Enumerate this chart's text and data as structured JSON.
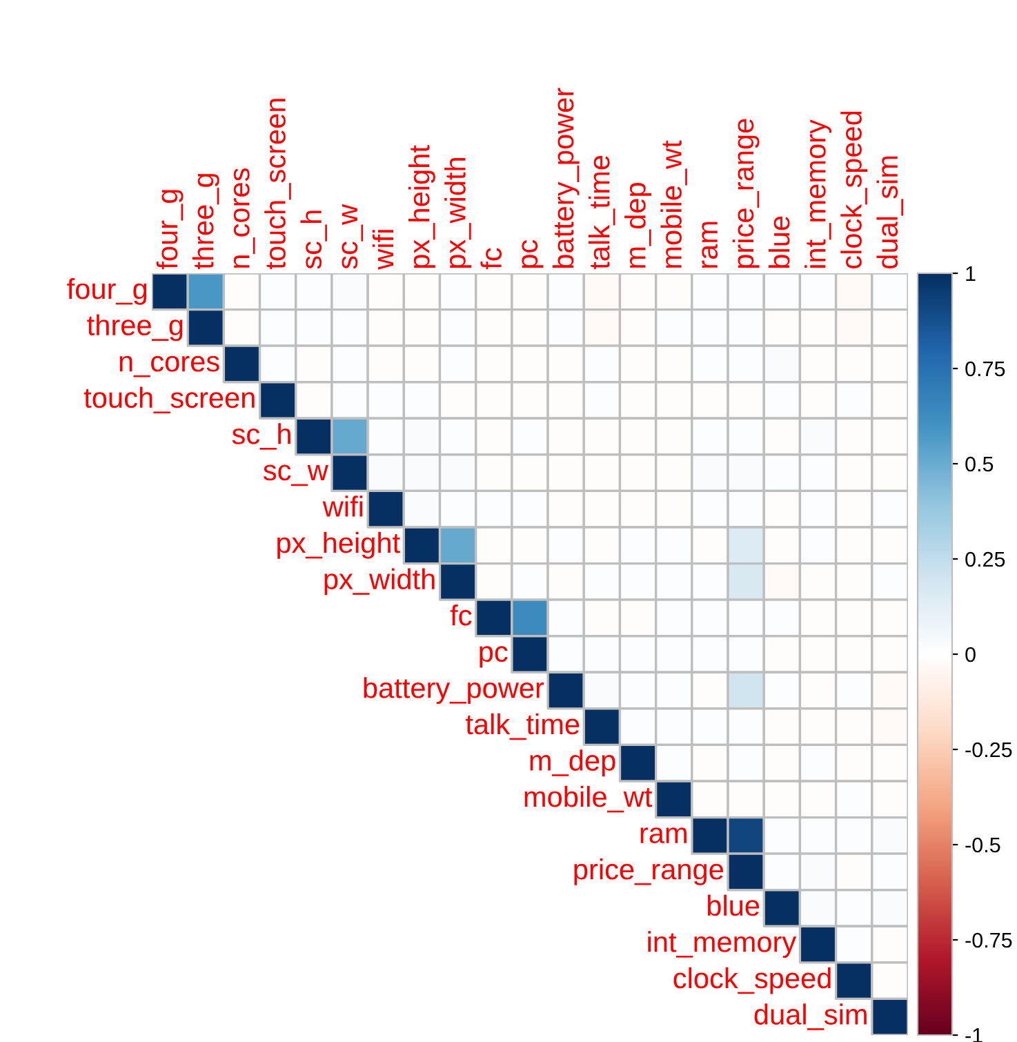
{
  "chart_data": {
    "type": "heatmap",
    "categories": [
      "four_g",
      "three_g",
      "n_cores",
      "touch_screen",
      "sc_h",
      "sc_w",
      "wifi",
      "px_height",
      "px_width",
      "fc",
      "pc",
      "battery_power",
      "talk_time",
      "m_dep",
      "mobile_wt",
      "ram",
      "price_range",
      "blue",
      "int_memory",
      "clock_speed",
      "dual_sim"
    ],
    "y_categories": [
      "four_g",
      "three_g",
      "n_cores",
      "touch_screen",
      "sc_h",
      "sc_w",
      "wifi",
      "px_height",
      "px_width",
      "fc",
      "pc",
      "battery_power",
      "talk_time",
      "m_dep",
      "mobile_wt",
      "ram",
      "price_range",
      "blue",
      "int_memory",
      "clock_speed",
      "dual_sim"
    ],
    "cells": [
      [
        1,
        0.58,
        -0.01,
        0.01,
        0.01,
        0.03,
        -0.01,
        -0.01,
        0.01,
        -0.01,
        -0.01,
        0.01,
        -0.03,
        -0.01,
        -0.01,
        0.01,
        0.01,
        0.01,
        0.01,
        -0.03,
        0.01
      ],
      [
        null,
        1,
        -0.01,
        0.01,
        0.01,
        0.01,
        -0.01,
        -0.01,
        0.01,
        -0.01,
        -0.01,
        0.01,
        -0.03,
        -0.01,
        0.01,
        0.01,
        0.01,
        -0.01,
        -0.01,
        -0.03,
        -0.01
      ],
      [
        null,
        null,
        1,
        0.01,
        -0.01,
        0.01,
        -0.01,
        -0.01,
        0.01,
        -0.01,
        -0.01,
        -0.01,
        0.01,
        -0.01,
        -0.01,
        0.01,
        0.01,
        0.03,
        -0.01,
        -0.01,
        -0.01
      ],
      [
        null,
        null,
        null,
        1,
        -0.01,
        0.01,
        0.01,
        0.01,
        -0.01,
        -0.01,
        -0.01,
        -0.01,
        0.01,
        -0.01,
        -0.01,
        -0.01,
        -0.01,
        0.01,
        -0.01,
        0.01,
        -0.01
      ],
      [
        null,
        null,
        null,
        null,
        1,
        0.51,
        0.01,
        0.03,
        0.01,
        -0.01,
        0.01,
        -0.01,
        -0.01,
        -0.01,
        -0.01,
        0.01,
        0.01,
        -0.01,
        0.03,
        -0.01,
        -0.01
      ],
      [
        null,
        null,
        null,
        null,
        null,
        1,
        0.03,
        0.03,
        0.03,
        -0.01,
        -0.01,
        -0.01,
        -0.01,
        -0.01,
        -0.01,
        0.03,
        0.03,
        0.01,
        0.01,
        -0.01,
        -0.01
      ],
      [
        null,
        null,
        null,
        null,
        null,
        null,
        1,
        0.03,
        0.01,
        0.01,
        0.01,
        -0.01,
        -0.01,
        -0.01,
        -0.01,
        0.01,
        0.01,
        -0.01,
        0.01,
        -0.01,
        0.01
      ],
      [
        null,
        null,
        null,
        null,
        null,
        null,
        null,
        1,
        0.51,
        -0.01,
        -0.01,
        0.01,
        -0.01,
        0.01,
        0.01,
        -0.01,
        0.15,
        -0.01,
        0.01,
        -0.01,
        -0.01
      ],
      [
        null,
        null,
        null,
        null,
        null,
        null,
        null,
        null,
        1,
        -0.01,
        0.01,
        -0.01,
        0.01,
        0.01,
        0.01,
        0.01,
        0.17,
        -0.03,
        -0.01,
        -0.01,
        0.01
      ],
      [
        null,
        null,
        null,
        null,
        null,
        null,
        null,
        null,
        null,
        1,
        0.64,
        0.01,
        -0.01,
        -0.01,
        0.01,
        0.01,
        0.01,
        0.01,
        -0.01,
        -0.01,
        -0.01
      ],
      [
        null,
        null,
        null,
        null,
        null,
        null,
        null,
        null,
        null,
        null,
        1,
        0.01,
        0.01,
        0.01,
        0.01,
        0.01,
        0.01,
        -0.01,
        -0.01,
        -0.01,
        -0.01
      ],
      [
        null,
        null,
        null,
        null,
        null,
        null,
        null,
        null,
        null,
        null,
        null,
        1,
        0.03,
        0.01,
        0.01,
        -0.01,
        0.2,
        0.01,
        -0.01,
        0.01,
        -0.03
      ],
      [
        null,
        null,
        null,
        null,
        null,
        null,
        null,
        null,
        null,
        null,
        null,
        null,
        1,
        0.01,
        0.01,
        0.01,
        0.01,
        -0.01,
        -0.01,
        -0.01,
        -0.03
      ],
      [
        null,
        null,
        null,
        null,
        null,
        null,
        null,
        null,
        null,
        null,
        null,
        null,
        null,
        1,
        0.01,
        -0.01,
        0.01,
        -0.01,
        0.01,
        -0.01,
        -0.01
      ],
      [
        null,
        null,
        null,
        null,
        null,
        null,
        null,
        null,
        null,
        null,
        null,
        null,
        null,
        null,
        1,
        -0.01,
        -0.01,
        -0.01,
        -0.01,
        0.01,
        -0.01
      ],
      [
        null,
        null,
        null,
        null,
        null,
        null,
        null,
        null,
        null,
        null,
        null,
        null,
        null,
        null,
        null,
        1,
        0.92,
        0.01,
        0.01,
        0.01,
        0.03
      ],
      [
        null,
        null,
        null,
        null,
        null,
        null,
        null,
        null,
        null,
        null,
        null,
        null,
        null,
        null,
        null,
        null,
        1,
        0.01,
        0.03,
        -0.01,
        0.01
      ],
      [
        null,
        null,
        null,
        null,
        null,
        null,
        null,
        null,
        null,
        null,
        null,
        null,
        null,
        null,
        null,
        null,
        null,
        1,
        0.03,
        0.01,
        0.03
      ],
      [
        null,
        null,
        null,
        null,
        null,
        null,
        null,
        null,
        null,
        null,
        null,
        null,
        null,
        null,
        null,
        null,
        null,
        null,
        1,
        0.01,
        -0.01
      ],
      [
        null,
        null,
        null,
        null,
        null,
        null,
        null,
        null,
        null,
        null,
        null,
        null,
        null,
        null,
        null,
        null,
        null,
        null,
        null,
        1,
        -0.01
      ],
      [
        null,
        null,
        null,
        null,
        null,
        null,
        null,
        null,
        null,
        null,
        null,
        null,
        null,
        null,
        null,
        null,
        null,
        null,
        null,
        null,
        1
      ]
    ],
    "clim": [
      -1,
      1
    ],
    "cticks": [
      -1,
      -0.75,
      -0.5,
      -0.25,
      0,
      0.25,
      0.5,
      0.75,
      1
    ]
  }
}
